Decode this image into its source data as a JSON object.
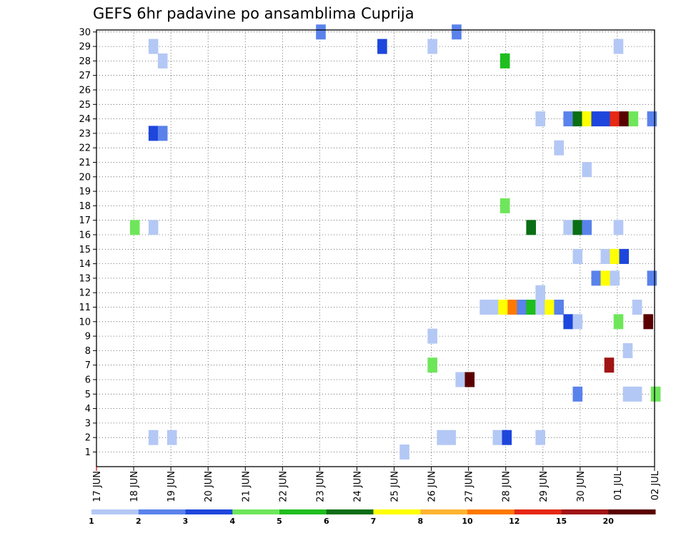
{
  "chart_data": {
    "type": "heatmap",
    "title": "GEFS 6hr padavine po ansamblima Cuprija",
    "xlabel": "",
    "ylabel": "",
    "x_tick_labels": [
      "17 JUN",
      "18 JUN",
      "19 JUN",
      "20 JUN",
      "21 JUN",
      "22 JUN",
      "23 JUN",
      "24 JUN",
      "25 JUN",
      "26 JUN",
      "27 JUN",
      "28 JUN",
      "29 JUN",
      "30 JUN",
      "01 JUL",
      "02 JUL"
    ],
    "x_range_days": [
      0,
      15
    ],
    "step_hours": 6,
    "y_tick_labels": [
      "1",
      "2",
      "3",
      "4",
      "5",
      "6",
      "7",
      "8",
      "9",
      "10",
      "11",
      "12",
      "13",
      "14",
      "15",
      "16",
      "17",
      "18",
      "19",
      "20",
      "21",
      "22",
      "23",
      "24",
      "25",
      "26",
      "27",
      "28",
      "29",
      "30"
    ],
    "ylim": [
      1,
      30
    ],
    "grid": true,
    "colorbar": {
      "position": "bottom",
      "labels": [
        "1",
        "2",
        "3",
        "4",
        "5",
        "6",
        "7",
        "8",
        "10",
        "12",
        "15",
        "20"
      ],
      "colors": [
        "#b4c8f5",
        "#5a82eb",
        "#1e46dc",
        "#6ee65a",
        "#1ebe1e",
        "#0a6e14",
        "#ffff00",
        "#ffb432",
        "#ff7800",
        "#e62814",
        "#a01414",
        "#5a0000"
      ]
    },
    "cells": [
      {
        "t": 5.9,
        "m": 30,
        "c": 1
      },
      {
        "t": 9.55,
        "m": 30,
        "c": 1
      },
      {
        "t": 1.4,
        "m": 29,
        "c": 0
      },
      {
        "t": 7.55,
        "m": 29,
        "c": 2
      },
      {
        "t": 8.9,
        "m": 29,
        "c": 0
      },
      {
        "t": 13.9,
        "m": 29,
        "c": 0
      },
      {
        "t": 1.65,
        "m": 28,
        "c": 0
      },
      {
        "t": 10.85,
        "m": 28,
        "c": 4
      },
      {
        "t": 11.8,
        "m": 24,
        "c": 0
      },
      {
        "t": 12.55,
        "m": 24,
        "c": 1
      },
      {
        "t": 12.8,
        "m": 24,
        "c": 5
      },
      {
        "t": 13.05,
        "m": 24,
        "c": 6
      },
      {
        "t": 13.3,
        "m": 24,
        "c": 2
      },
      {
        "t": 13.55,
        "m": 24,
        "c": 2
      },
      {
        "t": 13.8,
        "m": 24,
        "c": 9
      },
      {
        "t": 14.05,
        "m": 24,
        "c": 11
      },
      {
        "t": 14.3,
        "m": 24,
        "c": 3
      },
      {
        "t": 14.8,
        "m": 24,
        "c": 1
      },
      {
        "t": 1.4,
        "m": 23,
        "c": 2
      },
      {
        "t": 1.65,
        "m": 23,
        "c": 1
      },
      {
        "t": 12.3,
        "m": 22,
        "c": 0
      },
      {
        "t": 13.05,
        "m": 20.5,
        "c": 0
      },
      {
        "t": 10.85,
        "m": 18,
        "c": 3
      },
      {
        "t": 0.9,
        "m": 16.5,
        "c": 3
      },
      {
        "t": 1.4,
        "m": 16.5,
        "c": 0
      },
      {
        "t": 11.55,
        "m": 16.5,
        "c": 5
      },
      {
        "t": 12.55,
        "m": 16.5,
        "c": 0
      },
      {
        "t": 12.8,
        "m": 16.5,
        "c": 5
      },
      {
        "t": 13.05,
        "m": 16.5,
        "c": 1
      },
      {
        "t": 13.9,
        "m": 16.5,
        "c": 0
      },
      {
        "t": 12.8,
        "m": 14.5,
        "c": 0
      },
      {
        "t": 13.55,
        "m": 14.5,
        "c": 0
      },
      {
        "t": 13.8,
        "m": 14.5,
        "c": 6
      },
      {
        "t": 14.05,
        "m": 14.5,
        "c": 2
      },
      {
        "t": 13.3,
        "m": 13,
        "c": 1
      },
      {
        "t": 13.55,
        "m": 13,
        "c": 6
      },
      {
        "t": 13.8,
        "m": 13,
        "c": 0
      },
      {
        "t": 14.8,
        "m": 13,
        "c": 1
      },
      {
        "t": 11.8,
        "m": 12,
        "c": 0
      },
      {
        "t": 10.3,
        "m": 11,
        "c": 0
      },
      {
        "t": 10.55,
        "m": 11,
        "c": 0
      },
      {
        "t": 10.8,
        "m": 11,
        "c": 6
      },
      {
        "t": 11.05,
        "m": 11,
        "c": 8
      },
      {
        "t": 11.3,
        "m": 11,
        "c": 1
      },
      {
        "t": 11.55,
        "m": 11,
        "c": 4
      },
      {
        "t": 11.8,
        "m": 11,
        "c": 0
      },
      {
        "t": 12.05,
        "m": 11,
        "c": 6
      },
      {
        "t": 12.3,
        "m": 11,
        "c": 1
      },
      {
        "t": 14.4,
        "m": 11,
        "c": 0
      },
      {
        "t": 12.55,
        "m": 10,
        "c": 2
      },
      {
        "t": 12.8,
        "m": 10,
        "c": 0
      },
      {
        "t": 13.9,
        "m": 10,
        "c": 3
      },
      {
        "t": 14.7,
        "m": 10,
        "c": 11
      },
      {
        "t": 8.9,
        "m": 9,
        "c": 0
      },
      {
        "t": 14.15,
        "m": 8,
        "c": 0
      },
      {
        "t": 8.9,
        "m": 7,
        "c": 3
      },
      {
        "t": 13.65,
        "m": 7,
        "c": 10
      },
      {
        "t": 9.65,
        "m": 6,
        "c": 0
      },
      {
        "t": 9.9,
        "m": 6,
        "c": 11
      },
      {
        "t": 12.8,
        "m": 5,
        "c": 1
      },
      {
        "t": 14.15,
        "m": 5,
        "c": 0
      },
      {
        "t": 14.4,
        "m": 5,
        "c": 0
      },
      {
        "t": 14.9,
        "m": 5,
        "c": 3
      },
      {
        "t": 1.4,
        "m": 2,
        "c": 0
      },
      {
        "t": 1.9,
        "m": 2,
        "c": 0
      },
      {
        "t": 9.15,
        "m": 2,
        "c": 0
      },
      {
        "t": 9.4,
        "m": 2,
        "c": 0
      },
      {
        "t": 10.65,
        "m": 2,
        "c": 0
      },
      {
        "t": 10.9,
        "m": 2,
        "c": 2
      },
      {
        "t": 11.8,
        "m": 2,
        "c": 0
      },
      {
        "t": 8.15,
        "m": 1,
        "c": 0
      }
    ]
  }
}
